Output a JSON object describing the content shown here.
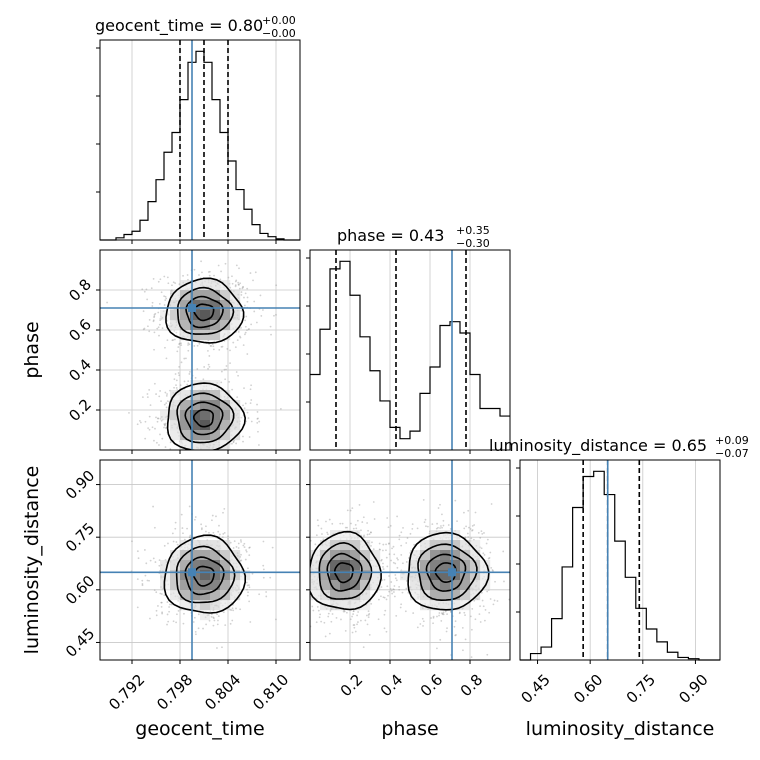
{
  "chart_data": {
    "type": "corner",
    "parameters": [
      "geocent_time",
      "phase",
      "luminosity_distance"
    ],
    "injection_values": {
      "geocent_time": 0.7995,
      "phase": 0.71,
      "luminosity_distance": 0.65
    },
    "colors": {
      "injection": "#4682b4",
      "histogram": "#000000",
      "grid": "#c8c8c8",
      "points": "#9a9a9a"
    },
    "ranges": {
      "geocent_time": [
        0.788,
        0.813
      ],
      "phase": [
        0.0,
        1.0
      ],
      "luminosity_distance": [
        0.4,
        0.97
      ]
    },
    "titles": [
      {
        "param": "geocent_time",
        "prefix": "geocent_time = ",
        "median": "0.80",
        "plus": "+0.00",
        "minus": "−0.00"
      },
      {
        "param": "phase",
        "prefix": "phase = ",
        "median": "0.43",
        "plus": "+0.35",
        "minus": "−0.30"
      },
      {
        "param": "luminosity_distance",
        "prefix": "luminosity_distance = ",
        "median": "0.65",
        "plus": "+0.09",
        "minus": "−0.07"
      }
    ],
    "axis_labels": {
      "geocent_time": "geocent_time",
      "phase": "phase",
      "luminosity_distance": "luminosity_distance"
    },
    "ticks": {
      "geocent_time": [
        "0.792",
        "0.798",
        "0.804",
        "0.810"
      ],
      "phase": [
        "0.2",
        "0.4",
        "0.6",
        "0.8"
      ],
      "luminosity_distance": [
        "0.45",
        "0.60",
        "0.75",
        "0.90"
      ]
    },
    "histograms": {
      "geocent_time": {
        "edges": [
          0.788,
          0.813
        ],
        "counts": [
          0,
          0,
          2,
          5,
          8,
          18,
          35,
          55,
          80,
          98,
          128,
          162,
          172,
          162,
          128,
          98,
          72,
          46,
          28,
          14,
          6,
          3,
          1,
          0,
          0
        ],
        "quantiles": [
          0.798,
          0.801,
          0.804
        ]
      },
      "phase": {
        "edges": [
          0.0,
          1.0
        ],
        "counts": [
          40,
          64,
          96,
          100,
          82,
          60,
          42,
          26,
          12,
          6,
          10,
          30,
          44,
          66,
          68,
          62,
          40,
          22,
          22,
          18
        ],
        "quantiles": [
          0.13,
          0.43,
          0.78
        ]
      },
      "luminosity_distance": {
        "edges": [
          0.4,
          0.97
        ],
        "counts": [
          0,
          5,
          10,
          32,
          72,
          118,
          142,
          146,
          128,
          92,
          64,
          40,
          24,
          14,
          6,
          2,
          1,
          0,
          0
        ],
        "quantiles": [
          0.58,
          0.65,
          0.74
        ]
      }
    },
    "density_blobs": [
      {
        "x": "geocent_time",
        "y": "phase",
        "mx": 0.801,
        "my": 0.69,
        "sx": 0.0024,
        "sy": 0.08
      },
      {
        "x": "geocent_time",
        "y": "phase",
        "mx": 0.801,
        "my": 0.16,
        "sx": 0.0024,
        "sy": 0.085
      },
      {
        "x": "geocent_time",
        "y": "luminosity_distance",
        "mx": 0.801,
        "my": 0.64,
        "sx": 0.0025,
        "sy": 0.055
      },
      {
        "x": "phase",
        "y": "luminosity_distance",
        "mx": 0.17,
        "my": 0.65,
        "sx": 0.09,
        "sy": 0.055
      },
      {
        "x": "phase",
        "y": "luminosity_distance",
        "mx": 0.68,
        "my": 0.65,
        "sx": 0.1,
        "sy": 0.055
      }
    ]
  }
}
